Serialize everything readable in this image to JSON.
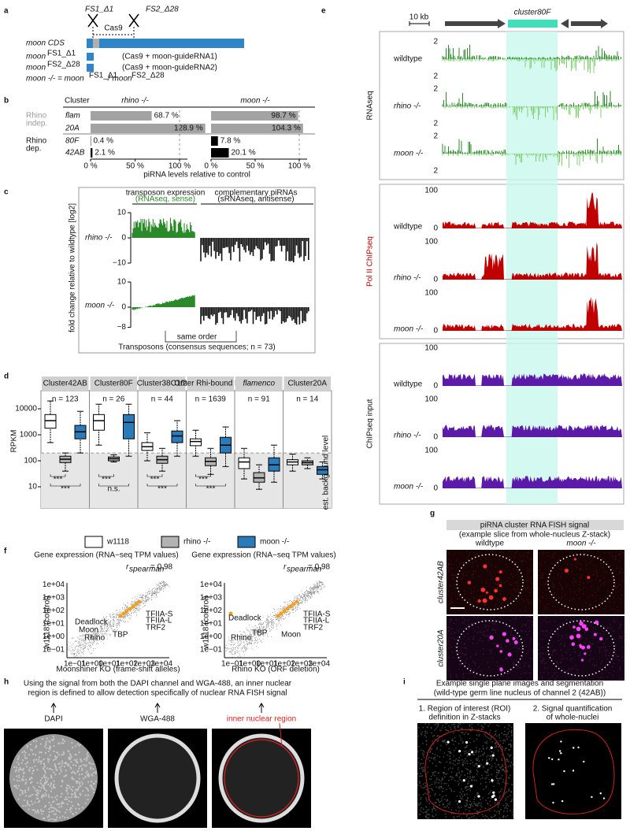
{
  "panel_labels": [
    "a",
    "b",
    "c",
    "d",
    "e",
    "f",
    "g",
    "h",
    "i"
  ],
  "a": {
    "guide1": "FS1_Δ1",
    "guide2": "FS2_Δ28",
    "cas9": "Cas9",
    "cds": "moon CDS",
    "allele1": "moon",
    "allele1_sup": "FS1_Δ1",
    "note1": "(Cas9 + moon-guideRNA1)",
    "allele2": "moon",
    "allele2_sup": "FS2_Δ28",
    "note2": "(Cas9 + moon-guideRNA2)",
    "genotype": [
      "moon -/- = moon",
      "FS1_Δ1",
      " / moon",
      "FS2_Δ28"
    ]
  },
  "b": {
    "cluster": "Cluster",
    "group1": [
      "Rhino",
      "indep."
    ],
    "group2": [
      "Rhino",
      "dep."
    ]
  },
  "chart_data": [
    {
      "type": "hbar",
      "title": "rhino -/-",
      "xlabel": "piRNA levels relative to control",
      "categories": [
        "flam",
        "20A",
        "80F",
        "42AB"
      ],
      "colors": [
        "#a3a3a3",
        "#a3a3a3",
        "#000000",
        "#000000"
      ],
      "values": [
        68.7,
        128.9,
        0.4,
        2.1
      ],
      "value_labels": [
        "68.7 %",
        "128.9 %",
        "0.4 %",
        "2.1 %"
      ],
      "xlim": [
        0,
        130
      ],
      "xticks": [
        {
          "value": 0,
          "label": "0 %"
        },
        {
          "value": 50,
          "label": "50 %"
        },
        {
          "value": 100,
          "label": "100 %"
        }
      ]
    },
    {
      "type": "hbar",
      "title": "moon -/-",
      "colors": [
        "#a3a3a3",
        "#a3a3a3",
        "#000000",
        "#000000"
      ],
      "values": [
        98.7,
        104.3,
        7.8,
        20.1
      ],
      "value_labels": [
        "98.7 %",
        "104.3 %",
        "7.8 %",
        "20.1 %"
      ],
      "xlim": [
        0,
        104.3
      ],
      "xticks": [
        {
          "value": 0,
          "label": "0 %"
        },
        {
          "value": 50,
          "label": "50 %"
        },
        {
          "value": 100,
          "label": "100 %"
        }
      ]
    },
    {
      "type": "box",
      "ylabel": "RPKM",
      "log_scale": true,
      "ylim": [
        1.5,
        50000
      ],
      "yticks": [
        10,
        100,
        1000,
        10000
      ],
      "background_level": 200,
      "background_label": "est. background level",
      "categories": [
        "Cluster42AB",
        "Cluster80F",
        "Cluster38C1/2",
        "Other Rhi-bound loci",
        "flamenco",
        "Cluster20A"
      ],
      "n_labels": [
        "n = 123",
        "n = 26",
        "n = 44",
        "n = 1639",
        "n = 91",
        "n = 14"
      ],
      "significance": [
        [
          "***",
          "***"
        ],
        [
          "***",
          "n.s."
        ],
        [
          "***",
          "***"
        ],
        [
          "***",
          "***"
        ]
      ],
      "series": [
        {
          "name": "w1118",
          "color": "#ffffff",
          "values": [
            {
              "low": 500,
              "q1": 1800,
              "median": 3500,
              "q3": 6000,
              "high": 20000
            },
            {
              "low": 400,
              "q1": 1500,
              "median": 3500,
              "q3": 6000,
              "high": 15000
            },
            {
              "low": 100,
              "q1": 250,
              "median": 350,
              "q3": 500,
              "high": 1200
            },
            {
              "low": 150,
              "q1": 380,
              "median": 550,
              "q3": 700,
              "high": 1500
            },
            {
              "low": 20,
              "q1": 50,
              "median": 90,
              "q3": 130,
              "high": 300
            },
            {
              "low": 40,
              "q1": 70,
              "median": 90,
              "q3": 110,
              "high": 180
            }
          ]
        },
        {
          "name": "rhino -/-",
          "color": "#b3b3b3",
          "values": [
            {
              "low": 40,
              "q1": 85,
              "median": 115,
              "q3": 150,
              "high": 200
            },
            {
              "low": 90,
              "q1": 100,
              "median": 120,
              "q3": 140,
              "high": 170
            },
            {
              "low": 40,
              "q1": 80,
              "median": 110,
              "q3": 150,
              "high": 300
            },
            {
              "low": 30,
              "q1": 65,
              "median": 95,
              "q3": 130,
              "high": 300
            },
            {
              "low": 8,
              "q1": 15,
              "median": 22,
              "q3": 35,
              "high": 70
            },
            {
              "low": 50,
              "q1": 70,
              "median": 85,
              "q3": 100,
              "high": 130
            }
          ]
        },
        {
          "name": "moon -/-",
          "color": "#2b7bba",
          "values": [
            {
              "low": 200,
              "q1": 700,
              "median": 1300,
              "q3": 2300,
              "high": 8000
            },
            {
              "low": 150,
              "q1": 700,
              "median": 3000,
              "q3": 6000,
              "high": 15000
            },
            {
              "low": 150,
              "q1": 500,
              "median": 900,
              "q3": 1400,
              "high": 3500
            },
            {
              "low": 60,
              "q1": 200,
              "median": 400,
              "q3": 800,
              "high": 2000
            },
            {
              "low": 15,
              "q1": 40,
              "median": 70,
              "q3": 130,
              "high": 400
            },
            {
              "low": 20,
              "q1": 30,
              "median": 45,
              "q3": 60,
              "high": 90
            }
          ]
        }
      ]
    }
  ],
  "c": {
    "ylabel": "fold change relative to wildtype [log2]",
    "head1": [
      "transposon expression",
      "(RNAseq, sense)"
    ],
    "head2": [
      "complementary piRNAs",
      "(sRNAseq, antisense)"
    ],
    "row1": "rhino -/-",
    "row2": "moon -/-",
    "ticks1": [
      "10",
      "0",
      "−10"
    ],
    "ticks2": [
      "10",
      "0",
      "−8"
    ],
    "same": "same order",
    "footer": "Transposons (consensus sequences; n = 73)"
  },
  "e": {
    "scale": "10 kb",
    "cluster": "cluster80F",
    "sections": [
      "RNAseq",
      "Pol II ChIPseq",
      "ChIPseq input"
    ],
    "rows": [
      "wildtype",
      "rhino -/-",
      "moon -/-"
    ],
    "rna_ticks": [
      "2",
      "2"
    ],
    "chip_ticks": [
      "100",
      "0"
    ]
  },
  "f": {
    "title": "Gene expression (RNA−seq TPM values)",
    "r": "r",
    "r_sub": "spearman",
    "r_val": "= 0.98",
    "ylabel": "w1118 (control)",
    "xlabel1": "Moonshiner KO (frame-shift alleles)",
    "xlabel2": "Rhino KO (ORF deletion)",
    "ticks": [
      "1e−01",
      "1e+00",
      "1e+01",
      "1e+02",
      "1e+03",
      "1e+04"
    ],
    "genes": [
      "Deadlock",
      "Moon",
      "Rhino",
      "TBP",
      "TFIIA-S",
      "TFIIA-L",
      "TRF2"
    ]
  },
  "g": {
    "title": "piRNA cluster RNA FISH signal",
    "subtitle": "(example slice from whole-nucleus Z-stack)",
    "cols": [
      "wildtype",
      "moon -/-"
    ],
    "rows": [
      "cluster42AB",
      "cluster20A"
    ]
  },
  "h": {
    "text": [
      "Using the signal from both the DAPI channel and WGA-488, an inner nuclear",
      "region is defined to allow detection specifically of nuclear RNA FISH signal"
    ],
    "labels": [
      "DAPI",
      "WGA-488",
      "inner nuclear region"
    ]
  },
  "i": {
    "title": [
      "Example single plane images and segmentation",
      "(wild-type germ line nucleus of channel 2 (42AB))"
    ],
    "col1": [
      "1. Region of interest (ROI)",
      "definition in Z-stacks"
    ],
    "col2": [
      "2. Signal quantification",
      "of whole-nuclei"
    ]
  }
}
